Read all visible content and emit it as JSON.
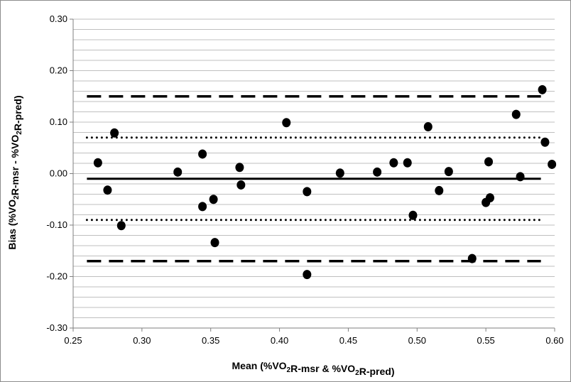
{
  "chart_data": {
    "type": "scatter",
    "xlabel": "Mean (%VO2R-msr & %VO2R-pred)",
    "ylabel": "Bias (%VO2R-msr - %VO2R-pred)",
    "xlim": [
      0.25,
      0.6
    ],
    "ylim": [
      -0.3,
      0.3
    ],
    "x_ticks": [
      "0.25",
      "0.30",
      "0.35",
      "0.40",
      "0.45",
      "0.50",
      "0.55",
      "0.60"
    ],
    "y_ticks": [
      "0.30",
      "0.20",
      "0.10",
      "0.00",
      "-0.10",
      "-0.20",
      "-0.30"
    ],
    "grid": true,
    "legend": "none",
    "reference_lines": [
      {
        "style": "solid",
        "y": -0.01,
        "x_range": [
          0.26,
          0.59
        ]
      },
      {
        "style": "dotted",
        "y": 0.07,
        "x_range": [
          0.26,
          0.59
        ]
      },
      {
        "style": "dotted",
        "y": -0.09,
        "x_range": [
          0.26,
          0.59
        ]
      },
      {
        "style": "dashed",
        "y": 0.15,
        "x_range": [
          0.26,
          0.59
        ]
      },
      {
        "style": "dashed",
        "y": -0.17,
        "x_range": [
          0.26,
          0.59
        ]
      }
    ],
    "points": [
      {
        "x": 0.268,
        "y": 0.021
      },
      {
        "x": 0.275,
        "y": -0.032
      },
      {
        "x": 0.28,
        "y": 0.079
      },
      {
        "x": 0.285,
        "y": -0.101
      },
      {
        "x": 0.326,
        "y": 0.003
      },
      {
        "x": 0.344,
        "y": 0.038
      },
      {
        "x": 0.344,
        "y": -0.064
      },
      {
        "x": 0.352,
        "y": -0.05
      },
      {
        "x": 0.353,
        "y": -0.134
      },
      {
        "x": 0.371,
        "y": 0.012
      },
      {
        "x": 0.372,
        "y": -0.022
      },
      {
        "x": 0.405,
        "y": 0.099
      },
      {
        "x": 0.42,
        "y": -0.035
      },
      {
        "x": 0.42,
        "y": -0.196
      },
      {
        "x": 0.444,
        "y": 0.001
      },
      {
        "x": 0.471,
        "y": 0.003
      },
      {
        "x": 0.483,
        "y": 0.021
      },
      {
        "x": 0.493,
        "y": 0.021
      },
      {
        "x": 0.497,
        "y": -0.081
      },
      {
        "x": 0.508,
        "y": 0.091
      },
      {
        "x": 0.516,
        "y": -0.033
      },
      {
        "x": 0.523,
        "y": 0.004
      },
      {
        "x": 0.54,
        "y": -0.165
      },
      {
        "x": 0.55,
        "y": -0.056
      },
      {
        "x": 0.552,
        "y": 0.023
      },
      {
        "x": 0.553,
        "y": -0.047
      },
      {
        "x": 0.572,
        "y": 0.115
      },
      {
        "x": 0.575,
        "y": -0.006
      },
      {
        "x": 0.591,
        "y": 0.163
      },
      {
        "x": 0.593,
        "y": 0.061
      },
      {
        "x": 0.598,
        "y": 0.018
      }
    ],
    "colors": {
      "marker": "#000000",
      "gridline": "#bfbfbf",
      "line": "#000000"
    }
  }
}
